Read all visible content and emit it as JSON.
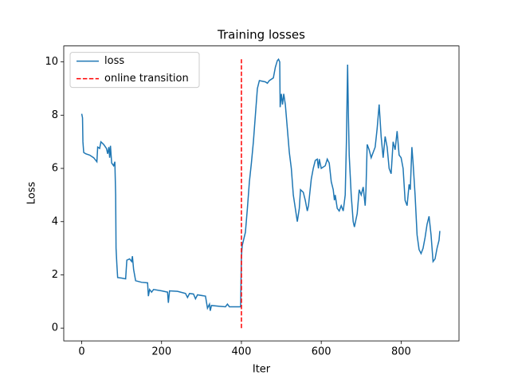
{
  "chart_data": {
    "type": "line",
    "title": "Training losses",
    "x_label": "Iter",
    "y_label": "Loss",
    "xlim": [
      -45,
      945
    ],
    "ylim": [
      -0.48,
      10.6
    ],
    "xticks": [
      0,
      200,
      400,
      600,
      800
    ],
    "yticks": [
      0,
      2,
      4,
      6,
      8,
      10
    ],
    "legend": "upper left",
    "series": [
      {
        "name": "loss",
        "color": "#1f77b4",
        "dash": false,
        "x": [
          0,
          2,
          3,
          5,
          10,
          20,
          30,
          38,
          40,
          45,
          48,
          55,
          62,
          65,
          68,
          70,
          72,
          75,
          80,
          83,
          85,
          86,
          88,
          90,
          100,
          110,
          113,
          120,
          125,
          127,
          130,
          135,
          150,
          165,
          167,
          170,
          175,
          180,
          200,
          215,
          217,
          220,
          240,
          260,
          265,
          270,
          280,
          285,
          290,
          310,
          315,
          320,
          322,
          325,
          345,
          360,
          365,
          370,
          398,
          400,
          402,
          410,
          415,
          420,
          425,
          430,
          435,
          440,
          445,
          460,
          465,
          470,
          480,
          485,
          490,
          493,
          496,
          497,
          500,
          503,
          506,
          510,
          515,
          520,
          525,
          530,
          535,
          540,
          545,
          548,
          555,
          560,
          565,
          568,
          575,
          580,
          585,
          590,
          593,
          595,
          600,
          610,
          615,
          620,
          625,
          630,
          633,
          635,
          640,
          645,
          650,
          655,
          660,
          663,
          665,
          666,
          668,
          670,
          675,
          680,
          683,
          690,
          695,
          700,
          705,
          710,
          712,
          715,
          720,
          725,
          735,
          740,
          745,
          750,
          755,
          760,
          765,
          770,
          775,
          780,
          785,
          790,
          795,
          800,
          805,
          810,
          815,
          820,
          823,
          827,
          830,
          835,
          840,
          845,
          850,
          855,
          860,
          865,
          870,
          875,
          880,
          885,
          890,
          895,
          897
        ],
        "values": [
          8.05,
          7.9,
          7.0,
          6.6,
          6.55,
          6.5,
          6.4,
          6.25,
          6.8,
          6.75,
          7.0,
          6.9,
          6.75,
          6.55,
          6.8,
          6.4,
          6.85,
          6.2,
          6.1,
          6.25,
          5.0,
          3.0,
          2.4,
          1.9,
          1.88,
          1.85,
          2.55,
          2.6,
          2.5,
          2.7,
          2.2,
          1.78,
          1.72,
          1.7,
          1.2,
          1.45,
          1.35,
          1.45,
          1.4,
          1.35,
          0.95,
          1.4,
          1.38,
          1.3,
          1.15,
          1.3,
          1.28,
          1.1,
          1.25,
          1.2,
          0.75,
          0.9,
          0.65,
          0.85,
          0.82,
          0.8,
          0.9,
          0.8,
          0.8,
          2.7,
          3.1,
          3.6,
          4.5,
          5.5,
          6.2,
          7.0,
          8.0,
          9.0,
          9.3,
          9.25,
          9.2,
          9.3,
          9.4,
          9.8,
          10.05,
          10.1,
          10.0,
          8.3,
          8.8,
          8.4,
          8.8,
          8.4,
          7.5,
          6.6,
          6.0,
          5.0,
          4.5,
          4.0,
          4.5,
          5.2,
          5.1,
          4.8,
          4.4,
          4.6,
          5.6,
          6.0,
          6.3,
          6.35,
          6.0,
          6.35,
          6.0,
          6.1,
          6.35,
          6.2,
          5.5,
          5.2,
          4.8,
          5.0,
          4.5,
          4.4,
          4.6,
          4.4,
          5.0,
          7.0,
          9.0,
          9.9,
          8.0,
          6.5,
          5.0,
          4.0,
          3.8,
          4.3,
          5.2,
          5.0,
          5.3,
          4.6,
          5.2,
          6.9,
          6.7,
          6.4,
          6.8,
          7.5,
          8.4,
          7.2,
          6.4,
          7.2,
          6.8,
          6.0,
          5.8,
          7.0,
          6.7,
          7.4,
          6.5,
          6.4,
          6.0,
          4.8,
          4.6,
          5.4,
          5.2,
          6.8,
          6.2,
          5.0,
          3.5,
          2.95,
          2.8,
          3.0,
          3.4,
          3.9,
          4.2,
          3.5,
          2.5,
          2.6,
          3.0,
          3.3,
          3.65
        ]
      },
      {
        "name": "online transition",
        "color": "#ff0000",
        "dash": true,
        "x": [
          400,
          400
        ],
        "values": [
          0,
          10.1
        ]
      }
    ]
  }
}
